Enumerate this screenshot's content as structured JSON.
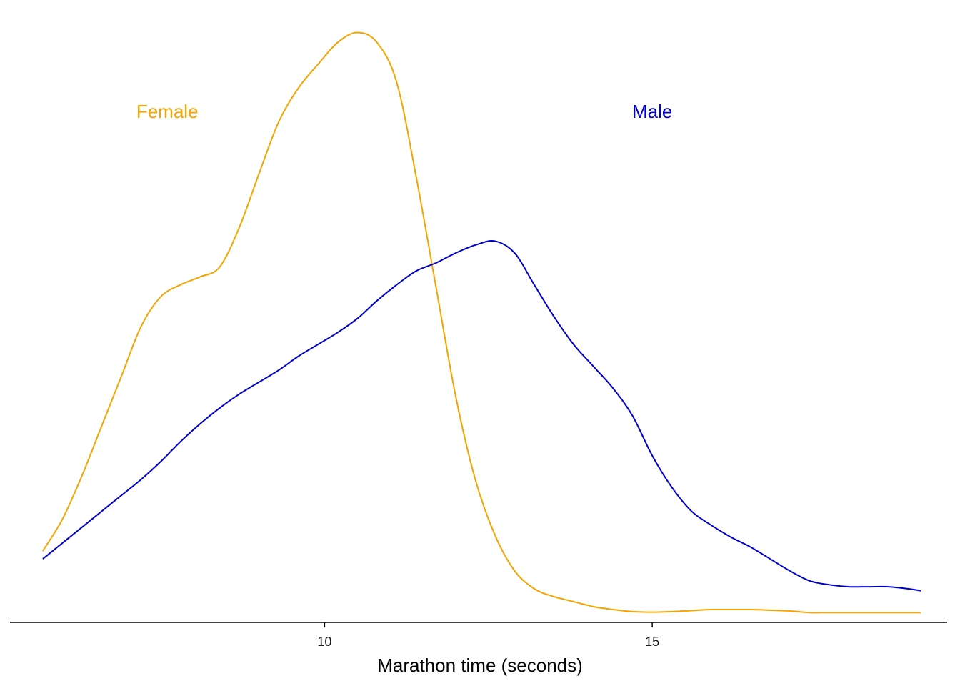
{
  "chart_data": {
    "type": "line",
    "title": "",
    "xlabel": "Marathon time (seconds)",
    "ylabel": "",
    "xlim": [
      5.2,
      19.5
    ],
    "ylim": [
      0,
      0.295
    ],
    "x_ticks": [
      10,
      15
    ],
    "x_tick_labels": [
      "10",
      "15"
    ],
    "grid": false,
    "series": [
      {
        "name": "Female",
        "color": "#F5A300",
        "label_at": [
          7.6,
          0.25
        ],
        "x": [
          5.7,
          6.0,
          6.3,
          6.6,
          6.9,
          7.2,
          7.5,
          7.8,
          8.1,
          8.4,
          8.7,
          9.0,
          9.3,
          9.6,
          9.9,
          10.2,
          10.5,
          10.8,
          11.1,
          11.4,
          11.7,
          12.0,
          12.3,
          12.6,
          12.9,
          13.2,
          13.5,
          13.8,
          14.1,
          14.4,
          14.7,
          15.0,
          15.3,
          15.6,
          15.9,
          16.2,
          16.5,
          16.8,
          17.1,
          17.4,
          17.7,
          18.0,
          18.3,
          18.6,
          18.9,
          19.1
        ],
        "y": [
          0.032,
          0.048,
          0.07,
          0.095,
          0.12,
          0.145,
          0.16,
          0.166,
          0.17,
          0.175,
          0.195,
          0.222,
          0.248,
          0.265,
          0.277,
          0.288,
          0.293,
          0.288,
          0.268,
          0.22,
          0.165,
          0.11,
          0.068,
          0.04,
          0.022,
          0.013,
          0.009,
          0.0065,
          0.004,
          0.0025,
          0.0015,
          0.0012,
          0.0015,
          0.002,
          0.0025,
          0.0025,
          0.0025,
          0.0022,
          0.0018,
          0.001,
          0.001,
          0.001,
          0.001,
          0.001,
          0.001,
          0.001
        ]
      },
      {
        "name": "Male",
        "color": "#0000CC",
        "label_at": [
          15.0,
          0.25
        ],
        "x": [
          5.7,
          6.0,
          6.3,
          6.6,
          6.9,
          7.2,
          7.5,
          7.8,
          8.1,
          8.4,
          8.7,
          9.0,
          9.3,
          9.6,
          9.9,
          10.2,
          10.5,
          10.8,
          11.1,
          11.4,
          11.7,
          12.0,
          12.3,
          12.6,
          12.9,
          13.2,
          13.5,
          13.8,
          14.1,
          14.4,
          14.7,
          15.0,
          15.3,
          15.6,
          15.9,
          16.2,
          16.5,
          16.8,
          17.1,
          17.4,
          17.7,
          18.0,
          18.3,
          18.6,
          18.9,
          19.1
        ],
        "y": [
          0.028,
          0.036,
          0.044,
          0.052,
          0.06,
          0.068,
          0.077,
          0.087,
          0.096,
          0.104,
          0.111,
          0.117,
          0.123,
          0.13,
          0.136,
          0.142,
          0.149,
          0.158,
          0.166,
          0.173,
          0.177,
          0.182,
          0.186,
          0.188,
          0.182,
          0.166,
          0.15,
          0.136,
          0.125,
          0.114,
          0.1,
          0.08,
          0.064,
          0.052,
          0.045,
          0.039,
          0.034,
          0.028,
          0.022,
          0.017,
          0.015,
          0.014,
          0.014,
          0.014,
          0.013,
          0.012
        ]
      }
    ]
  }
}
